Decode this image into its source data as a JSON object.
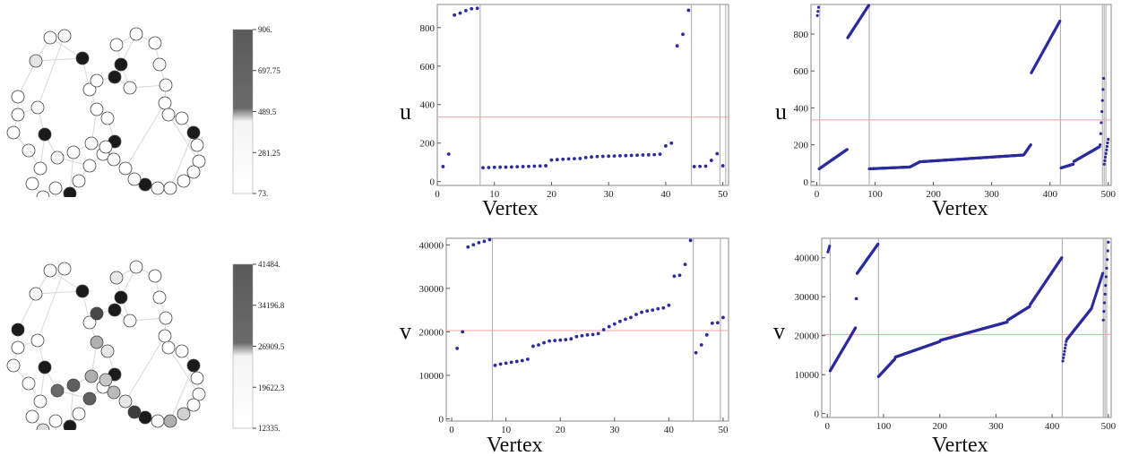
{
  "colors": {
    "point": "#2b2b9f",
    "refline": "#f2a0a0",
    "vline": "#b5b5b5",
    "frame": "#888888",
    "node_dark": "#1a1a1a",
    "edge": "#d8d8d8"
  },
  "colorbars": [
    {
      "ticks": [
        "906.",
        "697.75",
        "489.5",
        "281.25",
        "73."
      ]
    },
    {
      "ticks": [
        "41484.",
        "34196.8",
        "26909.5",
        "19622.3",
        "12335."
      ]
    }
  ],
  "graph": {
    "nodes": [
      {
        "id": 1,
        "s1": 0.12,
        "s2": 0.0
      },
      {
        "id": 2,
        "s1": 0.0,
        "s2": 1.0
      },
      {
        "id": 3,
        "s1": 0.0,
        "s2": 0.0
      },
      {
        "id": 4,
        "s1": 0.0,
        "s2": 0.0
      },
      {
        "id": 5,
        "s1": 0.0,
        "s2": 0.0
      },
      {
        "id": 6,
        "s1": 0.0,
        "s2": 0.0
      },
      {
        "id": 7,
        "s1": 0.0,
        "s2": 0.0
      },
      {
        "id": 8,
        "s1": 0.0,
        "s2": 0.15
      },
      {
        "id": 9,
        "s1": 0.0,
        "s2": 0.7
      },
      {
        "id": 10,
        "s1": 0.0,
        "s2": 0.0
      },
      {
        "id": 11,
        "s1": 1.0,
        "s2": 1.0
      },
      {
        "id": 12,
        "s1": 0.0,
        "s2": 0.0
      },
      {
        "id": 13,
        "s1": 0.0,
        "s2": 0.7
      },
      {
        "id": 14,
        "s1": 0.0,
        "s2": 0.0
      },
      {
        "id": 15,
        "s1": 1.0,
        "s2": 1.0
      },
      {
        "id": 16,
        "s1": 0.0,
        "s2": 0.1
      },
      {
        "id": 17,
        "s1": 0.0,
        "s2": 0.35
      },
      {
        "id": 18,
        "s1": 0.0,
        "s2": 0.0
      },
      {
        "id": 19,
        "s1": 0.0,
        "s2": 0.8
      },
      {
        "id": 20,
        "s1": 1.0,
        "s2": 1.0
      },
      {
        "id": 21,
        "s1": 0.0,
        "s2": 0.0
      },
      {
        "id": 22,
        "s1": 1.0,
        "s2": 1.0
      },
      {
        "id": 23,
        "s1": 0.0,
        "s2": 0.1
      },
      {
        "id": 24,
        "s1": 0.0,
        "s2": 0.0
      },
      {
        "id": 25,
        "s1": 0.0,
        "s2": 0.0
      },
      {
        "id": 26,
        "s1": 0.0,
        "s2": 0.0
      },
      {
        "id": 27,
        "s1": 0.0,
        "s2": 0.0
      },
      {
        "id": 28,
        "s1": 0.0,
        "s2": 0.0
      },
      {
        "id": 29,
        "s1": 0.0,
        "s2": 0.0
      },
      {
        "id": 30,
        "s1": 0.0,
        "s2": 0.0
      },
      {
        "id": 31,
        "s1": 1.0,
        "s2": 1.0
      },
      {
        "id": 32,
        "s1": 0.0,
        "s2": 0.0
      },
      {
        "id": 33,
        "s1": 0.0,
        "s2": 0.0
      },
      {
        "id": 34,
        "s1": 0.0,
        "s2": 0.0
      },
      {
        "id": 35,
        "s1": 0.0,
        "s2": 0.2
      },
      {
        "id": 36,
        "s1": 0.0,
        "s2": 0.35
      },
      {
        "id": 37,
        "s1": 0.0,
        "s2": 0.0
      },
      {
        "id": 38,
        "s1": 1.0,
        "s2": 1.0
      },
      {
        "id": 39,
        "s1": 0.0,
        "s2": 0.85
      },
      {
        "id": 40,
        "s1": 0.0,
        "s2": 0.1
      },
      {
        "id": 41,
        "s1": 0.0,
        "s2": 0.3
      },
      {
        "id": 42,
        "s1": 0.0,
        "s2": 0.25
      },
      {
        "id": 43,
        "s1": 0.0,
        "s2": 0.35
      },
      {
        "id": 44,
        "s1": 0.0,
        "s2": 0.7
      },
      {
        "id": 45,
        "s1": 0.0,
        "s2": 0.65
      },
      {
        "id": 46,
        "s1": 1.0,
        "s2": 1.0
      },
      {
        "id": 47,
        "s1": 0.0,
        "s2": 0.0
      },
      {
        "id": 48,
        "s1": 0.0,
        "s2": 0.0
      },
      {
        "id": 49,
        "s1": 0.0,
        "s2": 0.0
      },
      {
        "id": 50,
        "s1": 1.0,
        "s2": 1.0
      }
    ]
  },
  "chart_data": [
    {
      "type": "scatter",
      "xlabel": "Vertex",
      "ylabel": "u",
      "xlim": [
        0,
        51
      ],
      "ylim": [
        -20,
        920
      ],
      "xticks": [
        0,
        10,
        20,
        30,
        40,
        50
      ],
      "yticks": [
        0,
        200,
        400,
        600,
        800
      ],
      "hline": 335,
      "vlines": [
        7.5,
        44.5,
        49.5,
        50.5
      ],
      "series": [
        {
          "points": [
            [
              1,
              78
            ],
            [
              2,
              143
            ],
            [
              3,
              865
            ],
            [
              4,
              875
            ],
            [
              5,
              888
            ],
            [
              6,
              898
            ],
            [
              7,
              900
            ],
            [
              8,
              72
            ],
            [
              9,
              73
            ],
            [
              10,
              74
            ],
            [
              11,
              75
            ],
            [
              12,
              75
            ],
            [
              13,
              76
            ],
            [
              14,
              77
            ],
            [
              15,
              78
            ],
            [
              16,
              79
            ],
            [
              17,
              80
            ],
            [
              18,
              81
            ],
            [
              19,
              82
            ],
            [
              20,
              112
            ],
            [
              21,
              114
            ],
            [
              22,
              116
            ],
            [
              23,
              118
            ],
            [
              24,
              119
            ],
            [
              25,
              120
            ],
            [
              26,
              125
            ],
            [
              27,
              128
            ],
            [
              28,
              130
            ],
            [
              29,
              131
            ],
            [
              30,
              132
            ],
            [
              31,
              133
            ],
            [
              32,
              134
            ],
            [
              33,
              135
            ],
            [
              34,
              136
            ],
            [
              35,
              137
            ],
            [
              36,
              138
            ],
            [
              37,
              139
            ],
            [
              38,
              140
            ],
            [
              39,
              142
            ],
            [
              40,
              185
            ],
            [
              41,
              200
            ],
            [
              42,
              705
            ],
            [
              43,
              765
            ],
            [
              44,
              890
            ],
            [
              45,
              78
            ],
            [
              46,
              79
            ],
            [
              47,
              80
            ],
            [
              48,
              110
            ],
            [
              49,
              145
            ],
            [
              50,
              82
            ]
          ]
        }
      ]
    },
    {
      "type": "scatter",
      "xlabel": "Vertex",
      "ylabel": "u",
      "xlim": [
        -10,
        505
      ],
      "ylim": [
        -20,
        960
      ],
      "xticks": [
        0,
        100,
        200,
        300,
        400,
        500
      ],
      "yticks": [
        0,
        200,
        400,
        600,
        800
      ],
      "hline": 335,
      "vlines": [
        5,
        90,
        418,
        490,
        493,
        496
      ],
      "segments": [
        {
          "x0": 1,
          "x1": 3,
          "y0": 900,
          "y1": 945
        },
        {
          "x0": 4,
          "x1": 52,
          "y0": 70,
          "y1": 175
        },
        {
          "x0": 53,
          "x1": 89,
          "y0": 780,
          "y1": 955
        },
        {
          "x0": 90,
          "x1": 160,
          "y0": 70,
          "y1": 80
        },
        {
          "x0": 161,
          "x1": 175,
          "y0": 82,
          "y1": 105
        },
        {
          "x0": 176,
          "x1": 355,
          "y0": 108,
          "y1": 145
        },
        {
          "x0": 356,
          "x1": 367,
          "y0": 150,
          "y1": 200
        },
        {
          "x0": 368,
          "x1": 417,
          "y0": 590,
          "y1": 870
        },
        {
          "x0": 419,
          "x1": 440,
          "y0": 75,
          "y1": 95
        },
        {
          "x0": 441,
          "x1": 485,
          "y0": 110,
          "y1": 190
        },
        {
          "x0": 486,
          "x1": 492,
          "y0": 200,
          "y1": 560
        },
        {
          "x0": 493,
          "x1": 500,
          "y0": 95,
          "y1": 230
        }
      ]
    },
    {
      "type": "scatter",
      "xlabel": "Vertex",
      "ylabel": "v",
      "xlim": [
        -1,
        51
      ],
      "ylim": [
        -500,
        41500
      ],
      "xticks": [
        0,
        10,
        20,
        30,
        40,
        50
      ],
      "yticks": [
        0,
        10000,
        20000,
        30000,
        40000
      ],
      "hline": 20300,
      "vlines": [
        7.5,
        44.5,
        49.5
      ],
      "series": [
        {
          "points": [
            [
              1,
              16200
            ],
            [
              2,
              20000
            ],
            [
              3,
              39500
            ],
            [
              4,
              40000
            ],
            [
              5,
              40500
            ],
            [
              6,
              40800
            ],
            [
              7,
              41200
            ],
            [
              8,
              12300
            ],
            [
              9,
              12600
            ],
            [
              10,
              12800
            ],
            [
              11,
              13000
            ],
            [
              12,
              13200
            ],
            [
              13,
              13400
            ],
            [
              14,
              13700
            ],
            [
              15,
              16700
            ],
            [
              16,
              17000
            ],
            [
              17,
              17500
            ],
            [
              18,
              17900
            ],
            [
              19,
              18000
            ],
            [
              20,
              18100
            ],
            [
              21,
              18200
            ],
            [
              22,
              18400
            ],
            [
              23,
              18900
            ],
            [
              24,
              19100
            ],
            [
              25,
              19300
            ],
            [
              26,
              19400
            ],
            [
              27,
              19600
            ],
            [
              28,
              20500
            ],
            [
              29,
              21200
            ],
            [
              30,
              21800
            ],
            [
              31,
              22400
            ],
            [
              32,
              22900
            ],
            [
              33,
              23300
            ],
            [
              34,
              24000
            ],
            [
              35,
              24500
            ],
            [
              36,
              24800
            ],
            [
              37,
              25000
            ],
            [
              38,
              25300
            ],
            [
              39,
              25500
            ],
            [
              40,
              26100
            ],
            [
              41,
              32800
            ],
            [
              42,
              33000
            ],
            [
              43,
              35500
            ],
            [
              44,
              41000
            ],
            [
              45,
              15200
            ],
            [
              46,
              17000
            ],
            [
              47,
              19300
            ],
            [
              48,
              22000
            ],
            [
              49,
              22100
            ],
            [
              50,
              23300
            ]
          ]
        }
      ]
    },
    {
      "type": "scatter",
      "xlabel": "Vertex",
      "ylabel": "v",
      "xlim": [
        -10,
        505
      ],
      "ylim": [
        -1000,
        45000
      ],
      "xticks": [
        0,
        100,
        200,
        300,
        400,
        500
      ],
      "yticks": [
        0,
        10000,
        20000,
        30000,
        40000
      ],
      "hline": 20300,
      "vlines": [
        5,
        91,
        418,
        491,
        494,
        497
      ],
      "segments": [
        {
          "x0": 1,
          "x1": 4,
          "y0": 41500,
          "y1": 43000
        },
        {
          "x0": 5,
          "x1": 50,
          "y0": 11000,
          "y1": 22000
        },
        {
          "x0": 51,
          "x1": 52,
          "y0": 29500,
          "y1": 29500
        },
        {
          "x0": 53,
          "x1": 90,
          "y0": 36000,
          "y1": 43500
        },
        {
          "x0": 91,
          "x1": 120,
          "y0": 9500,
          "y1": 14000
        },
        {
          "x0": 121,
          "x1": 200,
          "y0": 14500,
          "y1": 18500
        },
        {
          "x0": 201,
          "x1": 320,
          "y0": 18800,
          "y1": 23500
        },
        {
          "x0": 321,
          "x1": 360,
          "y0": 24000,
          "y1": 27500
        },
        {
          "x0": 361,
          "x1": 417,
          "y0": 28000,
          "y1": 40000
        },
        {
          "x0": 419,
          "x1": 425,
          "y0": 13500,
          "y1": 18500
        },
        {
          "x0": 426,
          "x1": 470,
          "y0": 19000,
          "y1": 27000
        },
        {
          "x0": 471,
          "x1": 490,
          "y0": 27500,
          "y1": 36000
        },
        {
          "x0": 491,
          "x1": 500,
          "y0": 24000,
          "y1": 44000
        }
      ]
    }
  ]
}
